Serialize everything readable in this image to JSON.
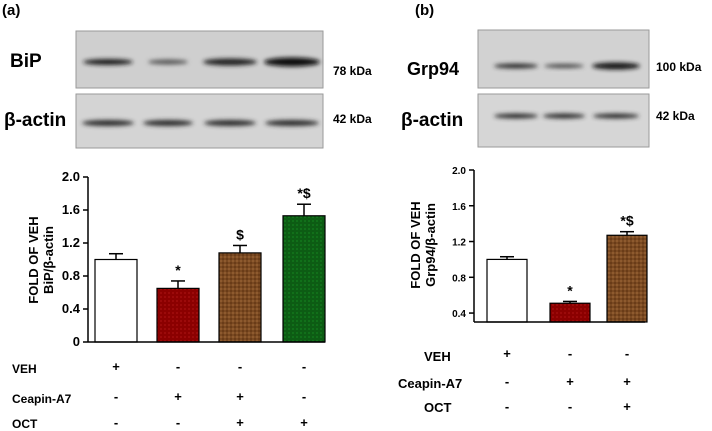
{
  "chart_data": [
    {
      "type": "bar",
      "panel_label": "(a)",
      "blot": {
        "rows": [
          {
            "name": "BiP",
            "size": "78 kDa"
          },
          {
            "name": "β-actin",
            "size": "42 kDa"
          }
        ]
      },
      "title": "",
      "xlabel": "",
      "ylabel_line1": "FOLD OF VEH",
      "ylabel_line2": "BiP/β-actin",
      "ylim": [
        0,
        2.0
      ],
      "yticks": [
        "0",
        "0.4",
        "0.8",
        "1.2",
        "1.6",
        "2.0"
      ],
      "ytick_values": [
        0,
        0.4,
        0.8,
        1.2,
        1.6,
        2.0
      ],
      "categories": [
        "VEH",
        "Ceapin-A7",
        "Ceapin-A7+OCT",
        "OCT"
      ],
      "values": [
        1.0,
        0.65,
        1.08,
        1.53
      ],
      "errors": [
        0.07,
        0.09,
        0.09,
        0.14
      ],
      "significance": [
        "",
        "*",
        "$",
        "*$"
      ],
      "treatment_rows": [
        {
          "label": "VEH",
          "marks": [
            "+",
            "-",
            "-",
            "-"
          ]
        },
        {
          "label": "Ceapin-A7",
          "marks": [
            "-",
            "+",
            "+",
            "-"
          ]
        },
        {
          "label": "OCT",
          "marks": [
            "-",
            "-",
            "+",
            "+"
          ]
        }
      ],
      "fills": [
        "#ffffff",
        "#8b0000",
        "#7a4a22",
        "#0d5c14"
      ]
    },
    {
      "type": "bar",
      "panel_label": "(b)",
      "blot": {
        "rows": [
          {
            "name": "Grp94",
            "size": "100 kDa"
          },
          {
            "name": "β-actin",
            "size": "42 kDa"
          }
        ]
      },
      "title": "",
      "xlabel": "",
      "ylabel_line1": "FOLD OF VEH",
      "ylabel_line2": "Grp94/β-actin",
      "ylim": [
        0.3,
        2.0
      ],
      "yticks": [
        "0.4",
        "0.8",
        "1.2",
        "1.6",
        "2.0"
      ],
      "ytick_values": [
        0.4,
        0.8,
        1.2,
        1.6,
        2.0
      ],
      "categories": [
        "VEH",
        "Ceapin-A7",
        "Ceapin-A7+OCT"
      ],
      "values": [
        1.0,
        0.51,
        1.27
      ],
      "errors": [
        0.03,
        0.02,
        0.04
      ],
      "significance": [
        "",
        "*",
        "*$"
      ],
      "treatment_rows": [
        {
          "label": "VEH",
          "marks": [
            "+",
            "-",
            "-"
          ]
        },
        {
          "label": "Ceapin-A7",
          "marks": [
            "-",
            "+",
            "+"
          ]
        },
        {
          "label": "OCT",
          "marks": [
            "-",
            "-",
            "+"
          ]
        }
      ],
      "fills": [
        "#ffffff",
        "#8b0000",
        "#7a4a22"
      ]
    }
  ]
}
